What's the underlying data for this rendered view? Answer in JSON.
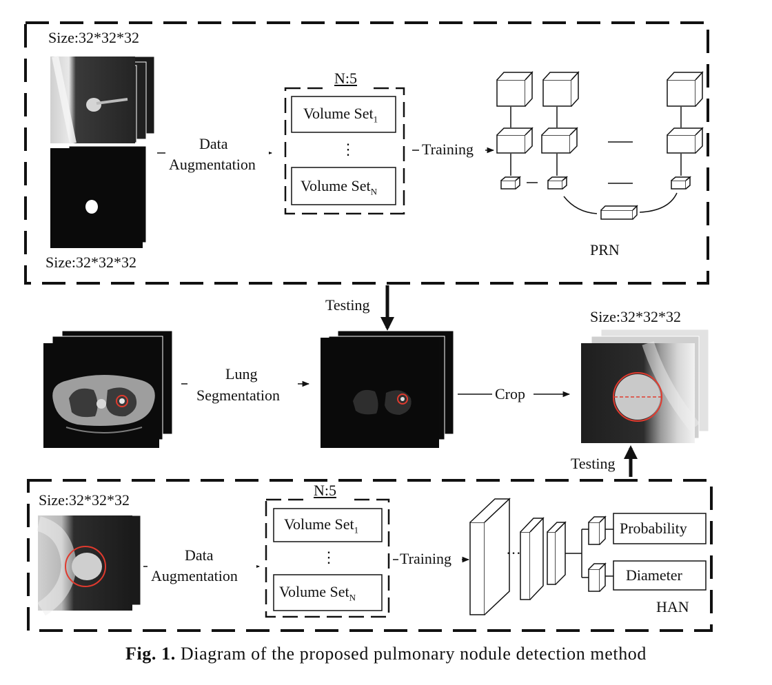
{
  "top_panel": {
    "size_label_top": "Size:32*32*32",
    "size_label_bottom": "Size:32*32*32",
    "augment_line1": "Data",
    "augment_line2": "Augmentation",
    "n_label": "N:5",
    "volume_set_1": "Volume Set",
    "volume_set_1_sub": "1",
    "volume_set_n": "Volume Set",
    "volume_set_n_sub": "N",
    "ellipsis": "⋮",
    "training_label": "Training",
    "network_label": "PRN"
  },
  "middle": {
    "testing_top": "Testing",
    "lung_line1": "Lung",
    "lung_line2": "Segmentation",
    "crop_label": "Crop",
    "size_label": "Size:32*32*32",
    "testing_bottom": "Testing"
  },
  "bottom_panel": {
    "size_label": "Size:32*32*32",
    "augment_line1": "Data",
    "augment_line2": "Augmentation",
    "n_label": "N:5",
    "volume_set_1": "Volume Set",
    "volume_set_1_sub": "1",
    "volume_set_n": "Volume Set",
    "volume_set_n_sub": "N",
    "ellipsis": "⋮",
    "training_label": "Training",
    "dots": "···",
    "output_probability": "Probability",
    "output_diameter": "Diameter",
    "network_label": "HAN"
  },
  "caption": {
    "prefix": "Fig. 1.",
    "text": " Diagram of the proposed pulmonary nodule detection method"
  },
  "colors": {
    "line": "#111111",
    "highlight": "#e03a2e",
    "scan_bg": "#0b0b0b"
  }
}
